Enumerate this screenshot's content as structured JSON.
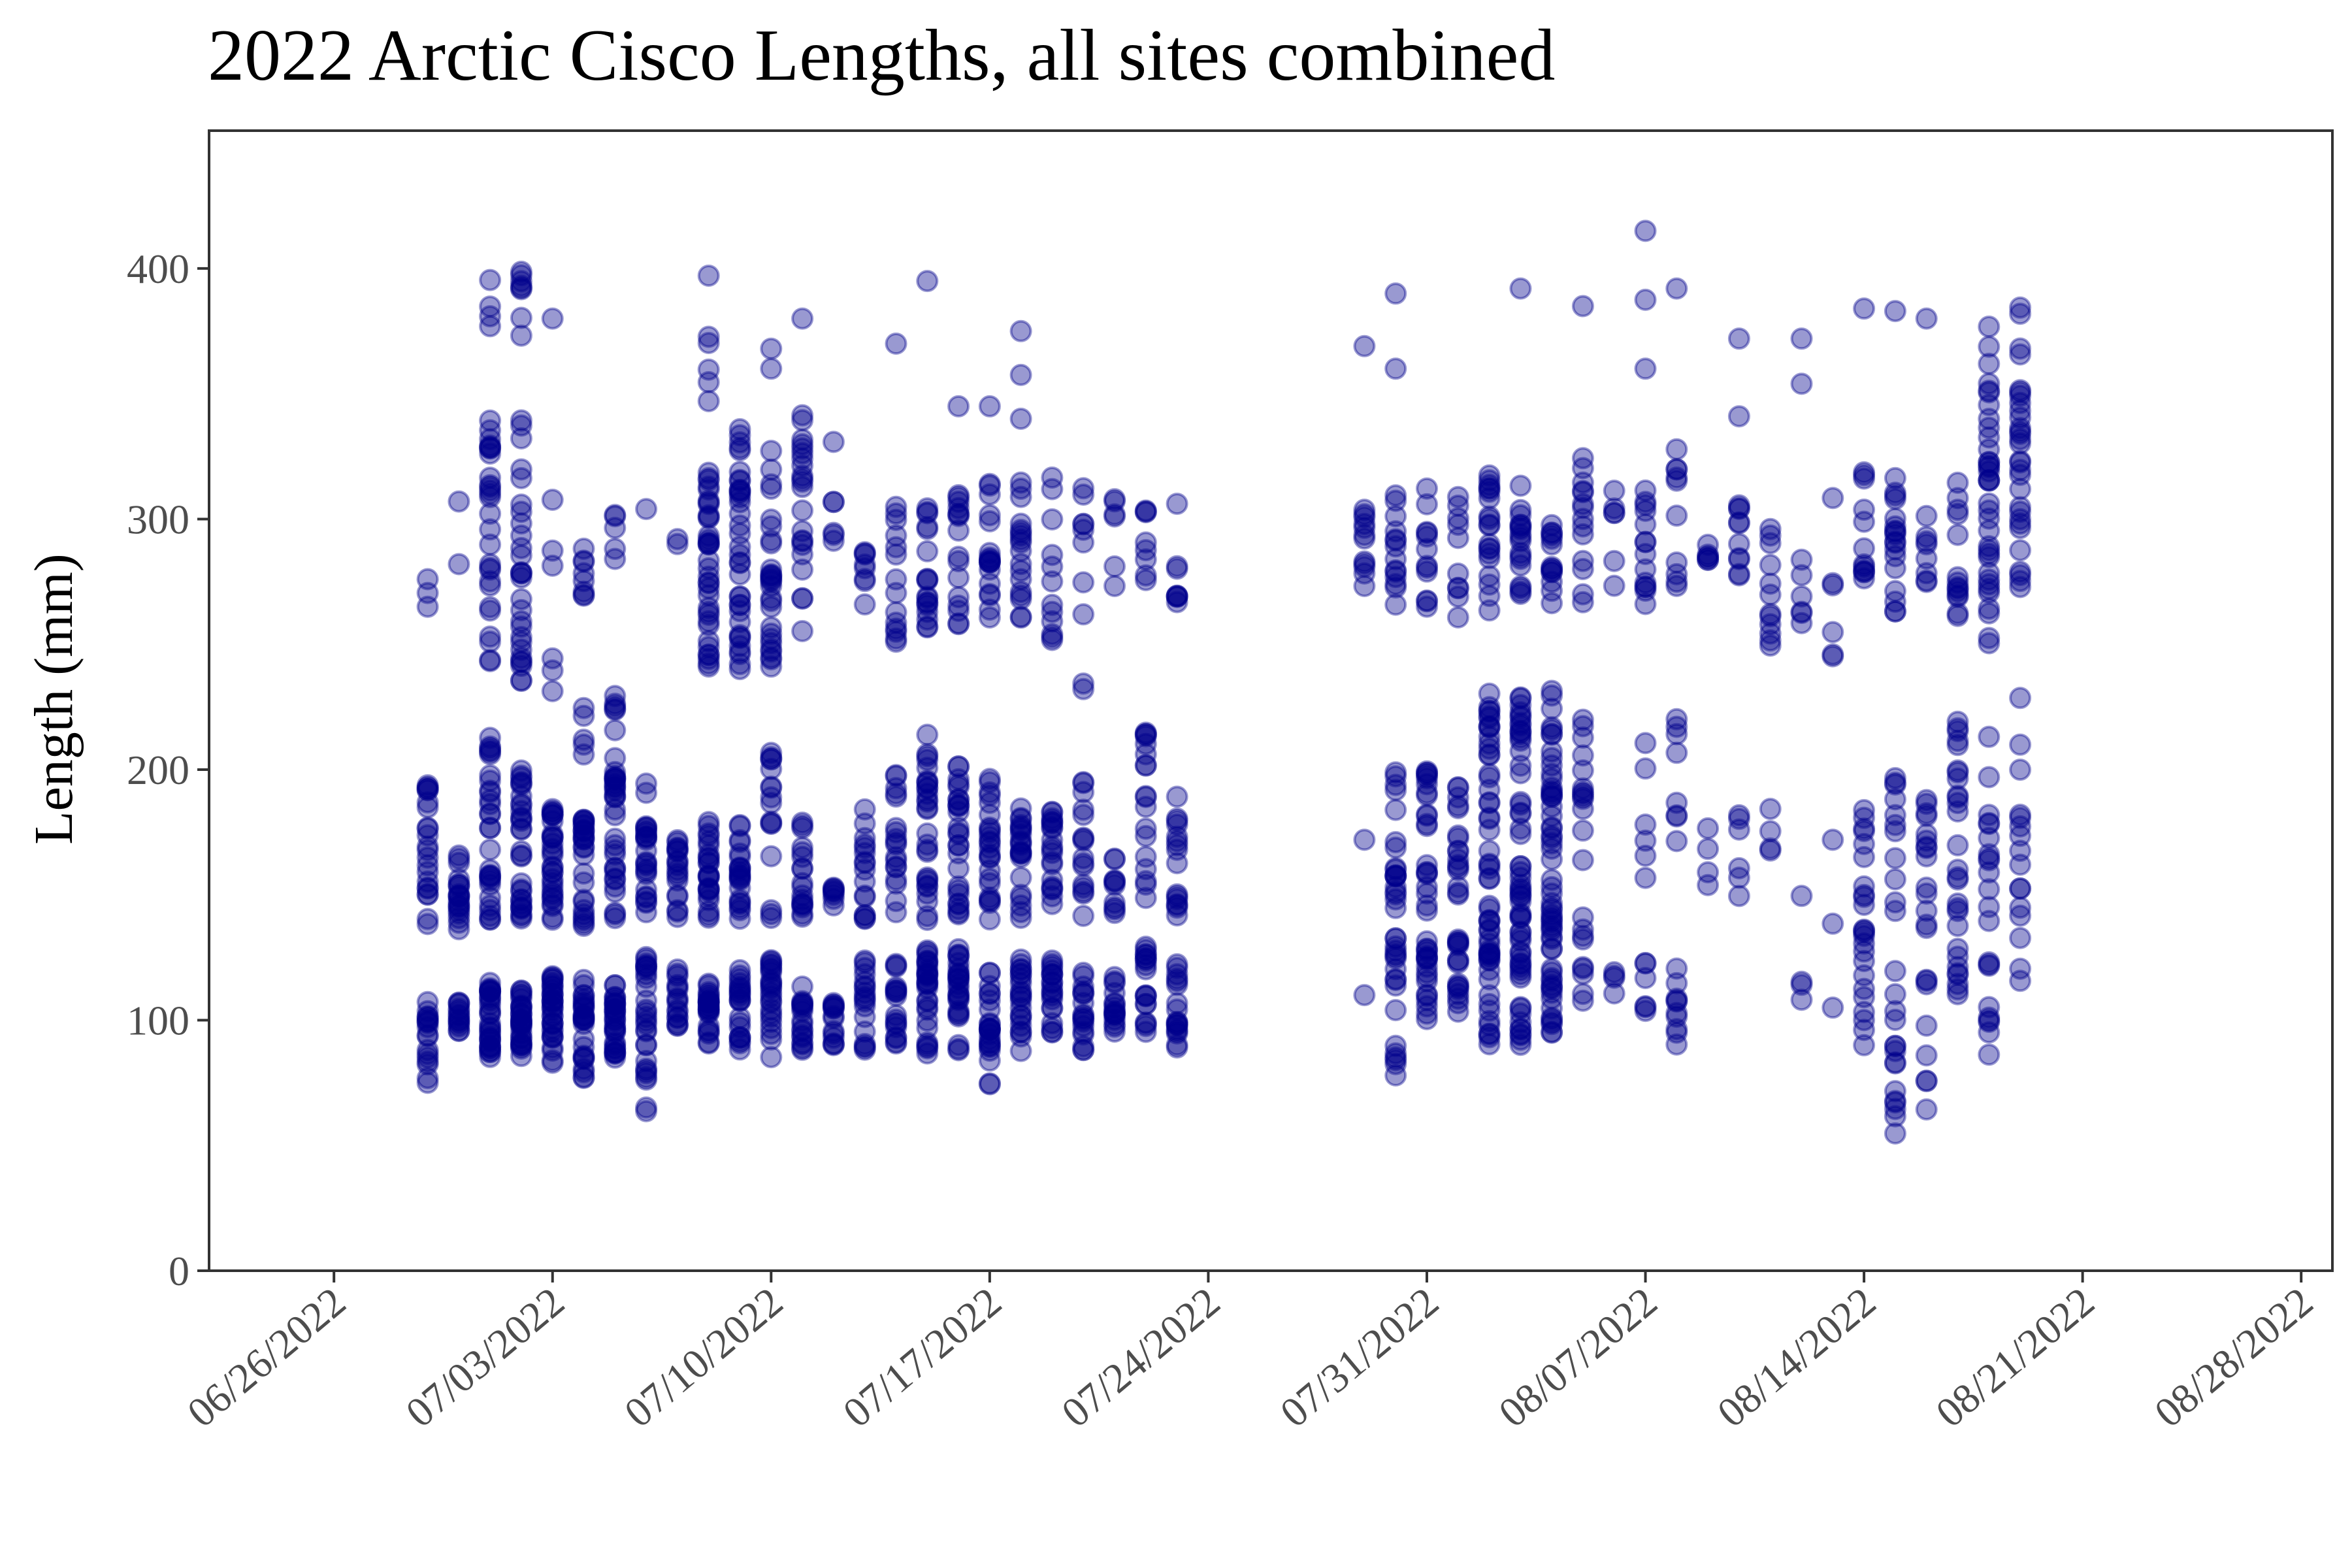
{
  "chart_data": {
    "type": "scatter",
    "title": "2022 Arctic Cisco Lengths, all sites combined",
    "xlabel": "",
    "ylabel": "Length (mm)",
    "ylim": [
      0,
      455
    ],
    "xlim": [
      "2022-06-22",
      "2022-08-29"
    ],
    "yticks": [
      0,
      100,
      200,
      300,
      400
    ],
    "ytick_labels": [
      "0",
      "100",
      "200",
      "300",
      "400"
    ],
    "xticks": [
      "2022-06-26",
      "2022-07-03",
      "2022-07-10",
      "2022-07-17",
      "2022-07-24",
      "2022-07-31",
      "2022-08-07",
      "2022-08-14",
      "2022-08-21",
      "2022-08-28"
    ],
    "xtick_labels": [
      "06/26/2022",
      "07/03/2022",
      "07/10/2022",
      "07/17/2022",
      "07/24/2022",
      "07/31/2022",
      "08/07/2022",
      "08/14/2022",
      "08/21/2022",
      "08/28/2022"
    ],
    "grid": false,
    "legend": "none",
    "point_color": "#00008b",
    "point_opacity": 0.4,
    "series": [
      {
        "x": [
          "2022-06-29",
          "2022-06-30",
          "2022-07-01",
          "2022-07-02",
          "2022-07-03",
          "2022-07-04",
          "2022-07-05",
          "2022-07-06",
          "2022-07-07",
          "2022-07-08",
          "2022-07-09",
          "2022-07-10",
          "2022-07-11",
          "2022-07-12",
          "2022-07-13",
          "2022-07-14",
          "2022-07-15",
          "2022-07-16",
          "2022-07-17",
          "2022-07-18",
          "2022-07-19",
          "2022-07-20",
          "2022-07-21",
          "2022-07-22",
          "2022-07-23",
          "2022-07-24",
          "2022-07-29",
          "2022-07-30",
          "2022-07-31",
          "2022-08-01",
          "2022-08-02",
          "2022-08-03",
          "2022-08-04",
          "2022-08-05",
          "2022-08-06",
          "2022-08-07",
          "2022-08-08",
          "2022-08-09",
          "2022-08-10",
          "2022-08-11",
          "2022-08-12",
          "2022-08-13",
          "2022-08-14",
          "2022-08-15",
          "2022-08-16",
          "2022-08-17",
          "2022-08-18",
          "2022-08-19",
          "2022-08-20",
          "2022-08-21",
          "2022-08-22",
          "2022-08-23",
          "2022-08-24"
        ],
        "groups": [
          [
            [
              75,
              110,
              18
            ],
            [
              130,
              198,
              22
            ],
            [
              265,
              276,
              3
            ]
          ],
          [
            [
              95,
              108,
              14
            ],
            [
              130,
              168,
              20
            ],
            [
              282,
              307,
              2
            ]
          ],
          [
            [
              85,
              115,
              30
            ],
            [
              140,
              215,
              30
            ],
            [
              240,
              340,
              28
            ],
            [
              370,
              405,
              4
            ]
          ],
          [
            [
              85,
              112,
              30
            ],
            [
              140,
              200,
              30
            ],
            [
              235,
              340,
              28
            ],
            [
              365,
              400,
              8
            ]
          ],
          [
            [
              80,
              118,
              32
            ],
            [
              140,
              188,
              30
            ],
            [
              230,
              312,
              6
            ],
            [
              380,
              380,
              1
            ]
          ],
          [
            [
              75,
              118,
              28
            ],
            [
              135,
              182,
              26
            ],
            [
              205,
              240,
              5
            ],
            [
              268,
              300,
              8
            ]
          ],
          [
            [
              85,
              115,
              30
            ],
            [
              140,
              205,
              30
            ],
            [
              210,
              230,
              6
            ],
            [
              280,
              305,
              5
            ]
          ],
          [
            [
              62,
              135,
              28
            ],
            [
              140,
              198,
              24
            ],
            [
              304,
              304,
              1
            ]
          ],
          [
            [
              95,
              125,
              16
            ],
            [
              140,
              172,
              18
            ],
            [
              290,
              292,
              2
            ]
          ],
          [
            [
              90,
              115,
              24
            ],
            [
              140,
              180,
              24
            ],
            [
              240,
              320,
              36
            ],
            [
              345,
              398,
              6
            ]
          ],
          [
            [
              88,
              120,
              22
            ],
            [
              140,
              178,
              22
            ],
            [
              240,
              345,
              36
            ]
          ],
          [
            [
              85,
              125,
              24
            ],
            [
              140,
              210,
              16
            ],
            [
              240,
              330,
              28
            ],
            [
              360,
              368,
              2
            ]
          ],
          [
            [
              88,
              115,
              18
            ],
            [
              140,
              180,
              18
            ],
            [
              255,
              345,
              22
            ],
            [
              380,
              380,
              1
            ]
          ],
          [
            [
              90,
              120,
              14
            ],
            [
              140,
              155,
              8
            ],
            [
              290,
              335,
              6
            ]
          ],
          [
            [
              88,
              125,
              18
            ],
            [
              140,
              185,
              16
            ],
            [
              265,
              290,
              8
            ]
          ],
          [
            [
              90,
              125,
              18
            ],
            [
              140,
              200,
              18
            ],
            [
              248,
              310,
              14
            ],
            [
              370,
              370,
              1
            ]
          ],
          [
            [
              85,
              130,
              28
            ],
            [
              140,
              215,
              28
            ],
            [
              255,
              305,
              18
            ],
            [
              395,
              395,
              1
            ]
          ],
          [
            [
              88,
              130,
              26
            ],
            [
              140,
              205,
              26
            ],
            [
              255,
              310,
              16
            ],
            [
              345,
              345,
              1
            ]
          ],
          [
            [
              73,
              120,
              24
            ],
            [
              140,
              202,
              24
            ],
            [
              258,
              315,
              18
            ],
            [
              345,
              345,
              1
            ]
          ],
          [
            [
              85,
              125,
              22
            ],
            [
              140,
              185,
              22
            ],
            [
              260,
              320,
              18
            ],
            [
              340,
              375,
              3
            ]
          ],
          [
            [
              92,
              125,
              20
            ],
            [
              140,
              185,
              20
            ],
            [
              250,
              322,
              12
            ]
          ],
          [
            [
              88,
              120,
              18
            ],
            [
              140,
              195,
              16
            ],
            [
              232,
              320,
              10
            ]
          ],
          [
            [
              95,
              120,
              16
            ],
            [
              140,
              165,
              10
            ],
            [
              270,
              310,
              6
            ]
          ],
          [
            [
              95,
              130,
              18
            ],
            [
              140,
              216,
              18
            ],
            [
              275,
              315,
              8
            ]
          ],
          [
            [
              88,
              130,
              18
            ],
            [
              140,
              193,
              16
            ],
            [
              257,
              316,
              8
            ]
          ],
          [],
          [
            [
              110,
              110,
              1
            ],
            [
              172,
              172,
              1
            ],
            [
              270,
              310,
              12
            ],
            [
              369,
              369,
              1
            ]
          ],
          [
            [
              76,
              135,
              18
            ],
            [
              140,
              200,
              18
            ],
            [
              265,
              320,
              14
            ],
            [
              360,
              390,
              2
            ]
          ],
          [
            [
              100,
              135,
              18
            ],
            [
              140,
              200,
              20
            ],
            [
              265,
              322,
              12
            ]
          ],
          [
            [
              100,
              138,
              16
            ],
            [
              140,
              195,
              16
            ],
            [
              250,
              310,
              10
            ]
          ],
          [
            [
              83,
              150,
              28
            ],
            [
              150,
              232,
              28
            ],
            [
              255,
              320,
              20
            ]
          ],
          [
            [
              90,
              150,
              30
            ],
            [
              150,
              230,
              30
            ],
            [
              265,
              315,
              18
            ],
            [
              392,
              392,
              1
            ]
          ],
          [
            [
              95,
              150,
              30
            ],
            [
              150,
              235,
              30
            ],
            [
              265,
              300,
              14
            ]
          ],
          [
            [
              100,
              140,
              8
            ],
            [
              140,
              222,
              14
            ],
            [
              265,
              325,
              14
            ],
            [
              385,
              385,
              1
            ]
          ],
          [
            [
              100,
              125,
              4
            ],
            [
              270,
              315,
              6
            ]
          ],
          [
            [
              100,
              125,
              6
            ],
            [
              155,
              216,
              6
            ],
            [
              265,
              315,
              14
            ],
            [
              360,
              415,
              3
            ]
          ],
          [
            [
              90,
              125,
              10
            ],
            [
              158,
              224,
              8
            ],
            [
              270,
              335,
              10
            ],
            [
              392,
              392,
              1
            ]
          ],
          [
            [
              140,
              185,
              4
            ],
            [
              277,
              300,
              6
            ]
          ],
          [
            [
              130,
              183,
              6
            ],
            [
              275,
              308,
              10
            ],
            [
              341,
              372,
              2
            ]
          ],
          [
            [
              136,
              185,
              4
            ],
            [
              245,
              305,
              12
            ]
          ],
          [
            [
              105,
              165,
              4
            ],
            [
              258,
              290,
              6
            ],
            [
              354,
              372,
              2
            ]
          ],
          [
            [
              105,
              172,
              3
            ],
            [
              240,
              310,
              6
            ]
          ],
          [
            [
              88,
              188,
              24
            ],
            [
              275,
              320,
              12
            ],
            [
              384,
              384,
              1
            ]
          ],
          [
            [
              48,
              220,
              26
            ],
            [
              262,
              318,
              18
            ],
            [
              383,
              383,
              1
            ]
          ],
          [
            [
              58,
              195,
              22
            ],
            [
              270,
              303,
              8
            ],
            [
              380,
              380,
              1
            ]
          ],
          [
            [
              100,
              220,
              28
            ],
            [
              260,
              320,
              14
            ]
          ],
          [
            [
              80,
              215,
              22
            ],
            [
              250,
              380,
              36
            ]
          ],
          [
            [
              110,
              234,
              16
            ],
            [
              270,
              385,
              30
            ]
          ],
          [],
          [],
          [],
          [],
          []
        ]
      }
    ]
  }
}
